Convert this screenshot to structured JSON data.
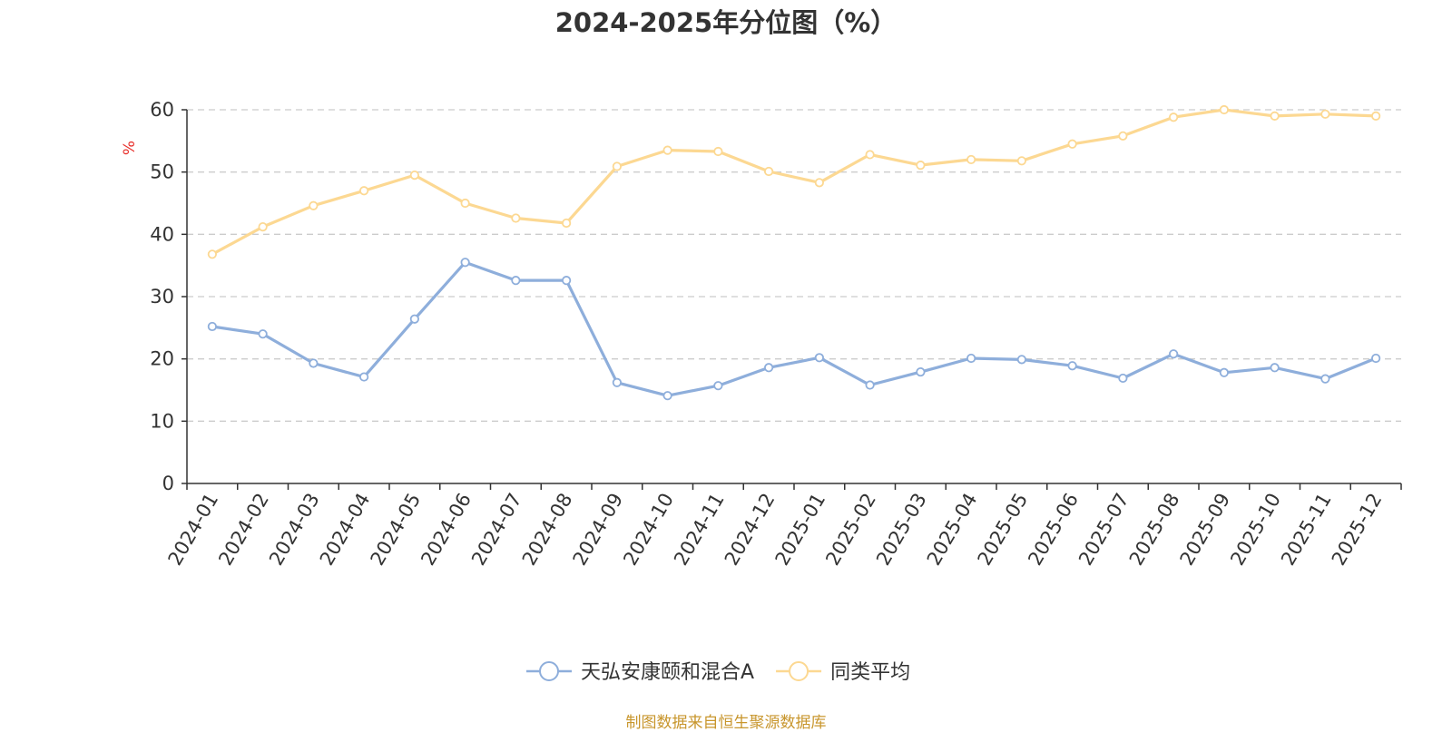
{
  "chart_data": {
    "type": "line",
    "title": "2024-2025年分位图（%）",
    "ylabel": "%",
    "xlabel": "",
    "ylim": [
      0,
      60
    ],
    "yticks": [
      0,
      10,
      20,
      30,
      40,
      50,
      60
    ],
    "grid": true,
    "legend": "bottom-center",
    "categories": [
      "2024-01",
      "2024-02",
      "2024-03",
      "2024-04",
      "2024-05",
      "2024-06",
      "2024-07",
      "2024-08",
      "2024-09",
      "2024-10",
      "2024-11",
      "2024-12",
      "2025-01",
      "2025-02",
      "2025-03",
      "2025-04",
      "2025-05",
      "2025-06",
      "2025-07",
      "2025-08",
      "2025-09",
      "2025-10",
      "2025-11",
      "2025-12"
    ],
    "series": [
      {
        "name": "天弘安康颐和混合A",
        "color": "#8eaedb",
        "values": [
          25.2,
          24.0,
          19.3,
          17.1,
          26.4,
          35.5,
          32.6,
          32.6,
          16.2,
          14.1,
          15.7,
          18.6,
          20.2,
          15.8,
          17.9,
          20.1,
          19.9,
          18.9,
          16.9,
          20.8,
          17.8,
          18.6,
          16.8,
          20.1
        ]
      },
      {
        "name": "同类平均",
        "color": "#fcd892",
        "values": [
          36.8,
          41.2,
          44.6,
          47.0,
          49.5,
          45.0,
          42.6,
          41.8,
          50.9,
          53.5,
          53.3,
          50.1,
          48.3,
          52.8,
          51.1,
          52.0,
          51.8,
          54.5,
          55.8,
          58.8,
          60.0,
          59.0,
          59.3,
          59.0
        ]
      }
    ]
  },
  "footer": {
    "source": "制图数据来自恒生聚源数据库"
  },
  "colors": {
    "axis": "#333333",
    "grid": "#cccccc",
    "ylabel": "#e8302c",
    "source": "#c8962d"
  }
}
